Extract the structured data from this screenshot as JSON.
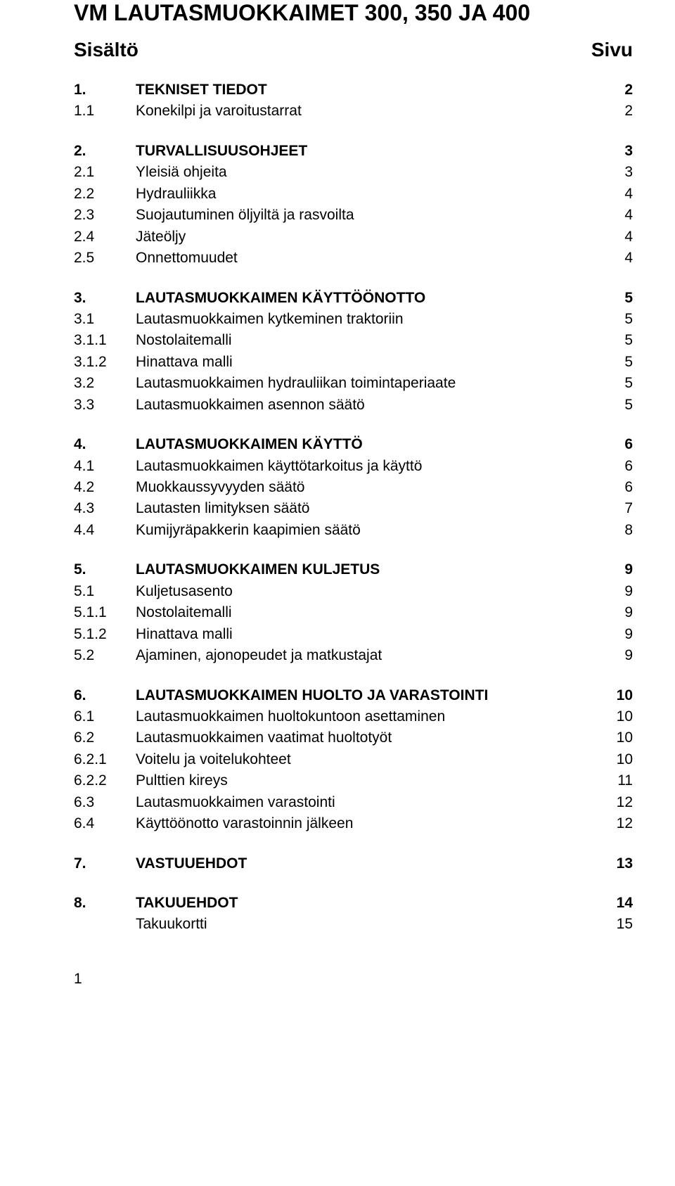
{
  "title": "VM LAUTASMUOKKAIMET 300, 350 JA 400",
  "contentsHeading": "Sisältö",
  "pageHeading": "Sivu",
  "pageNumber": "1",
  "sections": [
    {
      "rows": [
        {
          "num": "1.",
          "label": "TEKNISET TIEDOT",
          "page": "2",
          "bold": true
        },
        {
          "num": "1.1",
          "label": "Konekilpi ja varoitustarrat",
          "page": "2",
          "bold": false
        }
      ]
    },
    {
      "rows": [
        {
          "num": "2.",
          "label": "TURVALLISUUSOHJEET",
          "page": "3",
          "bold": true
        },
        {
          "num": "2.1",
          "label": "Yleisiä ohjeita",
          "page": "3",
          "bold": false
        },
        {
          "num": "2.2",
          "label": "Hydrauliikka",
          "page": "4",
          "bold": false
        },
        {
          "num": "2.3",
          "label": "Suojautuminen öljyiltä ja rasvoilta",
          "page": "4",
          "bold": false
        },
        {
          "num": "2.4",
          "label": "Jäteöljy",
          "page": "4",
          "bold": false
        },
        {
          "num": "2.5",
          "label": "Onnettomuudet",
          "page": "4",
          "bold": false
        }
      ]
    },
    {
      "rows": [
        {
          "num": "3.",
          "label": "LAUTASMUOKKAIMEN KÄYTTÖÖNOTTO",
          "page": "5",
          "bold": true
        },
        {
          "num": "3.1",
          "label": "Lautasmuokkaimen kytkeminen traktoriin",
          "page": "5",
          "bold": false
        },
        {
          "num": "3.1.1",
          "label": "Nostolaitemalli",
          "page": "5",
          "bold": false
        },
        {
          "num": "3.1.2",
          "label": "Hinattava malli",
          "page": "5",
          "bold": false
        },
        {
          "num": "3.2",
          "label": "Lautasmuokkaimen hydrauliikan toimintaperiaate",
          "page": "5",
          "bold": false
        },
        {
          "num": "3.3",
          "label": "Lautasmuokkaimen asennon säätö",
          "page": "5",
          "bold": false
        }
      ]
    },
    {
      "rows": [
        {
          "num": "4.",
          "label": "LAUTASMUOKKAIMEN KÄYTTÖ",
          "page": "6",
          "bold": true
        },
        {
          "num": "4.1",
          "label": "Lautasmuokkaimen käyttötarkoitus ja käyttö",
          "page": "6",
          "bold": false
        },
        {
          "num": "4.2",
          "label": "Muokkaussyvyyden säätö",
          "page": "6",
          "bold": false
        },
        {
          "num": "4.3",
          "label": "Lautasten limityksen säätö",
          "page": "7",
          "bold": false
        },
        {
          "num": "4.4",
          "label": "Kumijyräpakkerin kaapimien säätö",
          "page": "8",
          "bold": false
        }
      ]
    },
    {
      "rows": [
        {
          "num": "5.",
          "label": "LAUTASMUOKKAIMEN KULJETUS",
          "page": "9",
          "bold": true
        },
        {
          "num": "5.1",
          "label": "Kuljetusasento",
          "page": "9",
          "bold": false
        },
        {
          "num": "5.1.1",
          "label": "Nostolaitemalli",
          "page": "9",
          "bold": false
        },
        {
          "num": "5.1.2",
          "label": "Hinattava malli",
          "page": "9",
          "bold": false
        },
        {
          "num": "5.2",
          "label": "Ajaminen, ajonopeudet ja matkustajat",
          "page": "9",
          "bold": false
        }
      ]
    },
    {
      "rows": [
        {
          "num": "6.",
          "label": "LAUTASMUOKKAIMEN HUOLTO JA VARASTOINTI",
          "page": "10",
          "bold": true
        },
        {
          "num": "6.1",
          "label": "Lautasmuokkaimen huoltokuntoon asettaminen",
          "page": "10",
          "bold": false
        },
        {
          "num": "6.2",
          "label": "Lautasmuokkaimen vaatimat huoltotyöt",
          "page": "10",
          "bold": false
        },
        {
          "num": "6.2.1",
          "label": "Voitelu ja voitelukohteet",
          "page": "10",
          "bold": false
        },
        {
          "num": "6.2.2",
          "label": "Pulttien kireys",
          "page": "11",
          "bold": false
        },
        {
          "num": "6.3",
          "label": "Lautasmuokkaimen varastointi",
          "page": "12",
          "bold": false
        },
        {
          "num": "6.4",
          "label": "Käyttöönotto varastoinnin jälkeen",
          "page": "12",
          "bold": false
        }
      ]
    },
    {
      "rows": [
        {
          "num": "7.",
          "label": "VASTUUEHDOT",
          "page": "13",
          "bold": true
        }
      ]
    },
    {
      "rows": [
        {
          "num": "8.",
          "label": "TAKUUEHDOT",
          "page": "14",
          "bold": true
        },
        {
          "num": "",
          "label": "Takuukortti",
          "page": "15",
          "bold": false
        }
      ]
    }
  ]
}
